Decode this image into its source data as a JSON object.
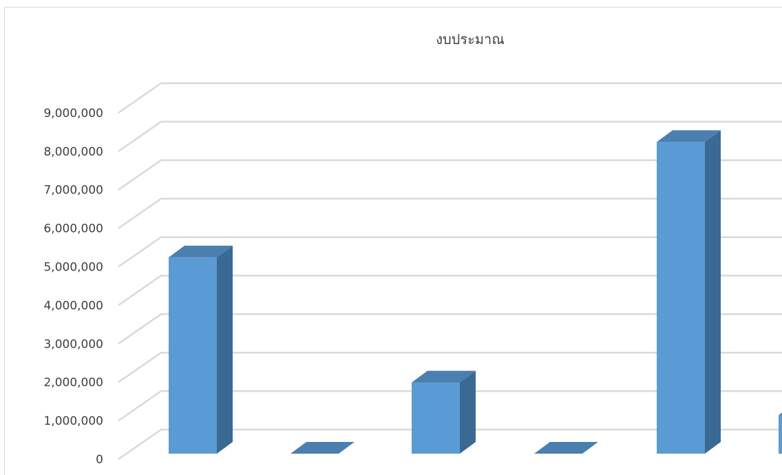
{
  "chart_data": {
    "type": "bar",
    "style": "3d-column",
    "title": "งบประมาณ",
    "xlabel": "",
    "ylabel": "",
    "ylim": [
      0,
      9000000
    ],
    "y_ticks": [
      "0",
      "1,000,000",
      "2,000,000",
      "3,000,000",
      "4,000,000",
      "5,000,000",
      "6,000,000",
      "7,000,000",
      "8,000,000",
      "9,000,000"
    ],
    "grid": true,
    "legend": "none",
    "categories": [
      "",
      "",
      "",
      "",
      "",
      ""
    ],
    "values": [
      5100000,
      0,
      1850000,
      0,
      8100000,
      1000000
    ],
    "colors": {
      "front": "#5b9bd5",
      "side": "#3a6a94",
      "top": "#4a7fb0",
      "grid": "#d9d9d9",
      "text": "#404040"
    }
  }
}
